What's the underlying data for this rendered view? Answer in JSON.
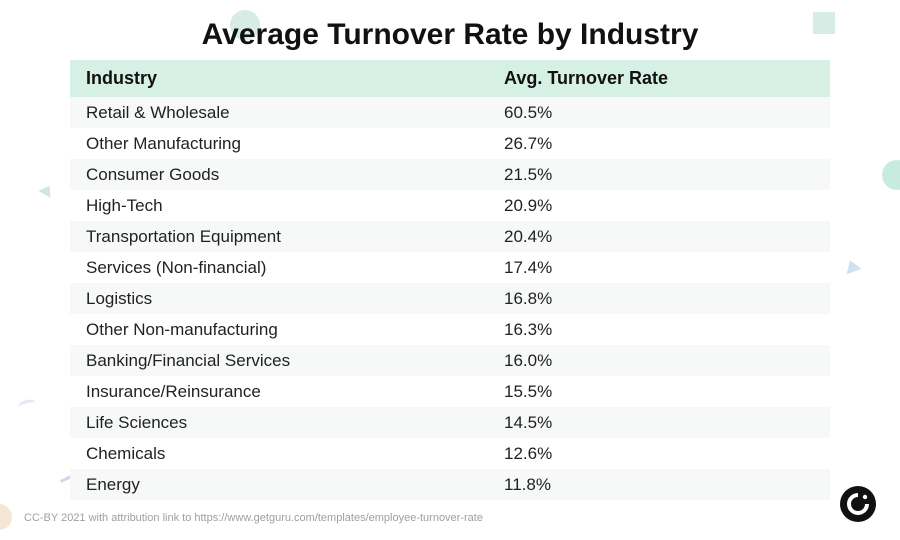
{
  "title": "Average Turnover Rate by Industry",
  "table": {
    "type": "table",
    "header_bg": "#d7f0e5",
    "row_alt_bg": "#f7f8f8",
    "text_color": "#222222",
    "header_fontsize": 18,
    "cell_fontsize": 17,
    "columns": [
      {
        "label": "Industry",
        "key": "industry",
        "width_pct": 55
      },
      {
        "label": "Avg. Turnover Rate",
        "key": "rate",
        "width_pct": 45
      }
    ],
    "rows": [
      {
        "industry": "Retail & Wholesale",
        "rate": "60.5%"
      },
      {
        "industry": "Other Manufacturing",
        "rate": "26.7%"
      },
      {
        "industry": "Consumer Goods",
        "rate": "21.5%"
      },
      {
        "industry": "High-Tech",
        "rate": "20.9%"
      },
      {
        "industry": "Transportation Equipment",
        "rate": "20.4%"
      },
      {
        "industry": "Services (Non-financial)",
        "rate": "17.4%"
      },
      {
        "industry": "Logistics",
        "rate": "16.8%"
      },
      {
        "industry": "Other Non-manufacturing",
        "rate": "16.3%"
      },
      {
        "industry": "Banking/Financial Services",
        "rate": "16.0%"
      },
      {
        "industry": "Insurance/Reinsurance",
        "rate": "15.5%"
      },
      {
        "industry": "Life Sciences",
        "rate": "14.5%"
      },
      {
        "industry": "Chemicals",
        "rate": "12.6%"
      },
      {
        "industry": "Energy",
        "rate": "11.8%"
      }
    ]
  },
  "attribution": "CC-BY 2021 with attribution link to https://www.getguru.com/templates/employee-turnover-rate",
  "logo": {
    "name": "guru-logo",
    "bg": "#111111",
    "fg": "#ffffff"
  },
  "background_color": "#ffffff",
  "decorations": {
    "circle_tl": "#d7ece4",
    "square_tr": "#d7ece4",
    "circle_r": "#c8ebe0",
    "triangle_r": "#d0e1f0",
    "triangle_l": "#cfe7de",
    "circle_bl": "#f5e6d6"
  }
}
